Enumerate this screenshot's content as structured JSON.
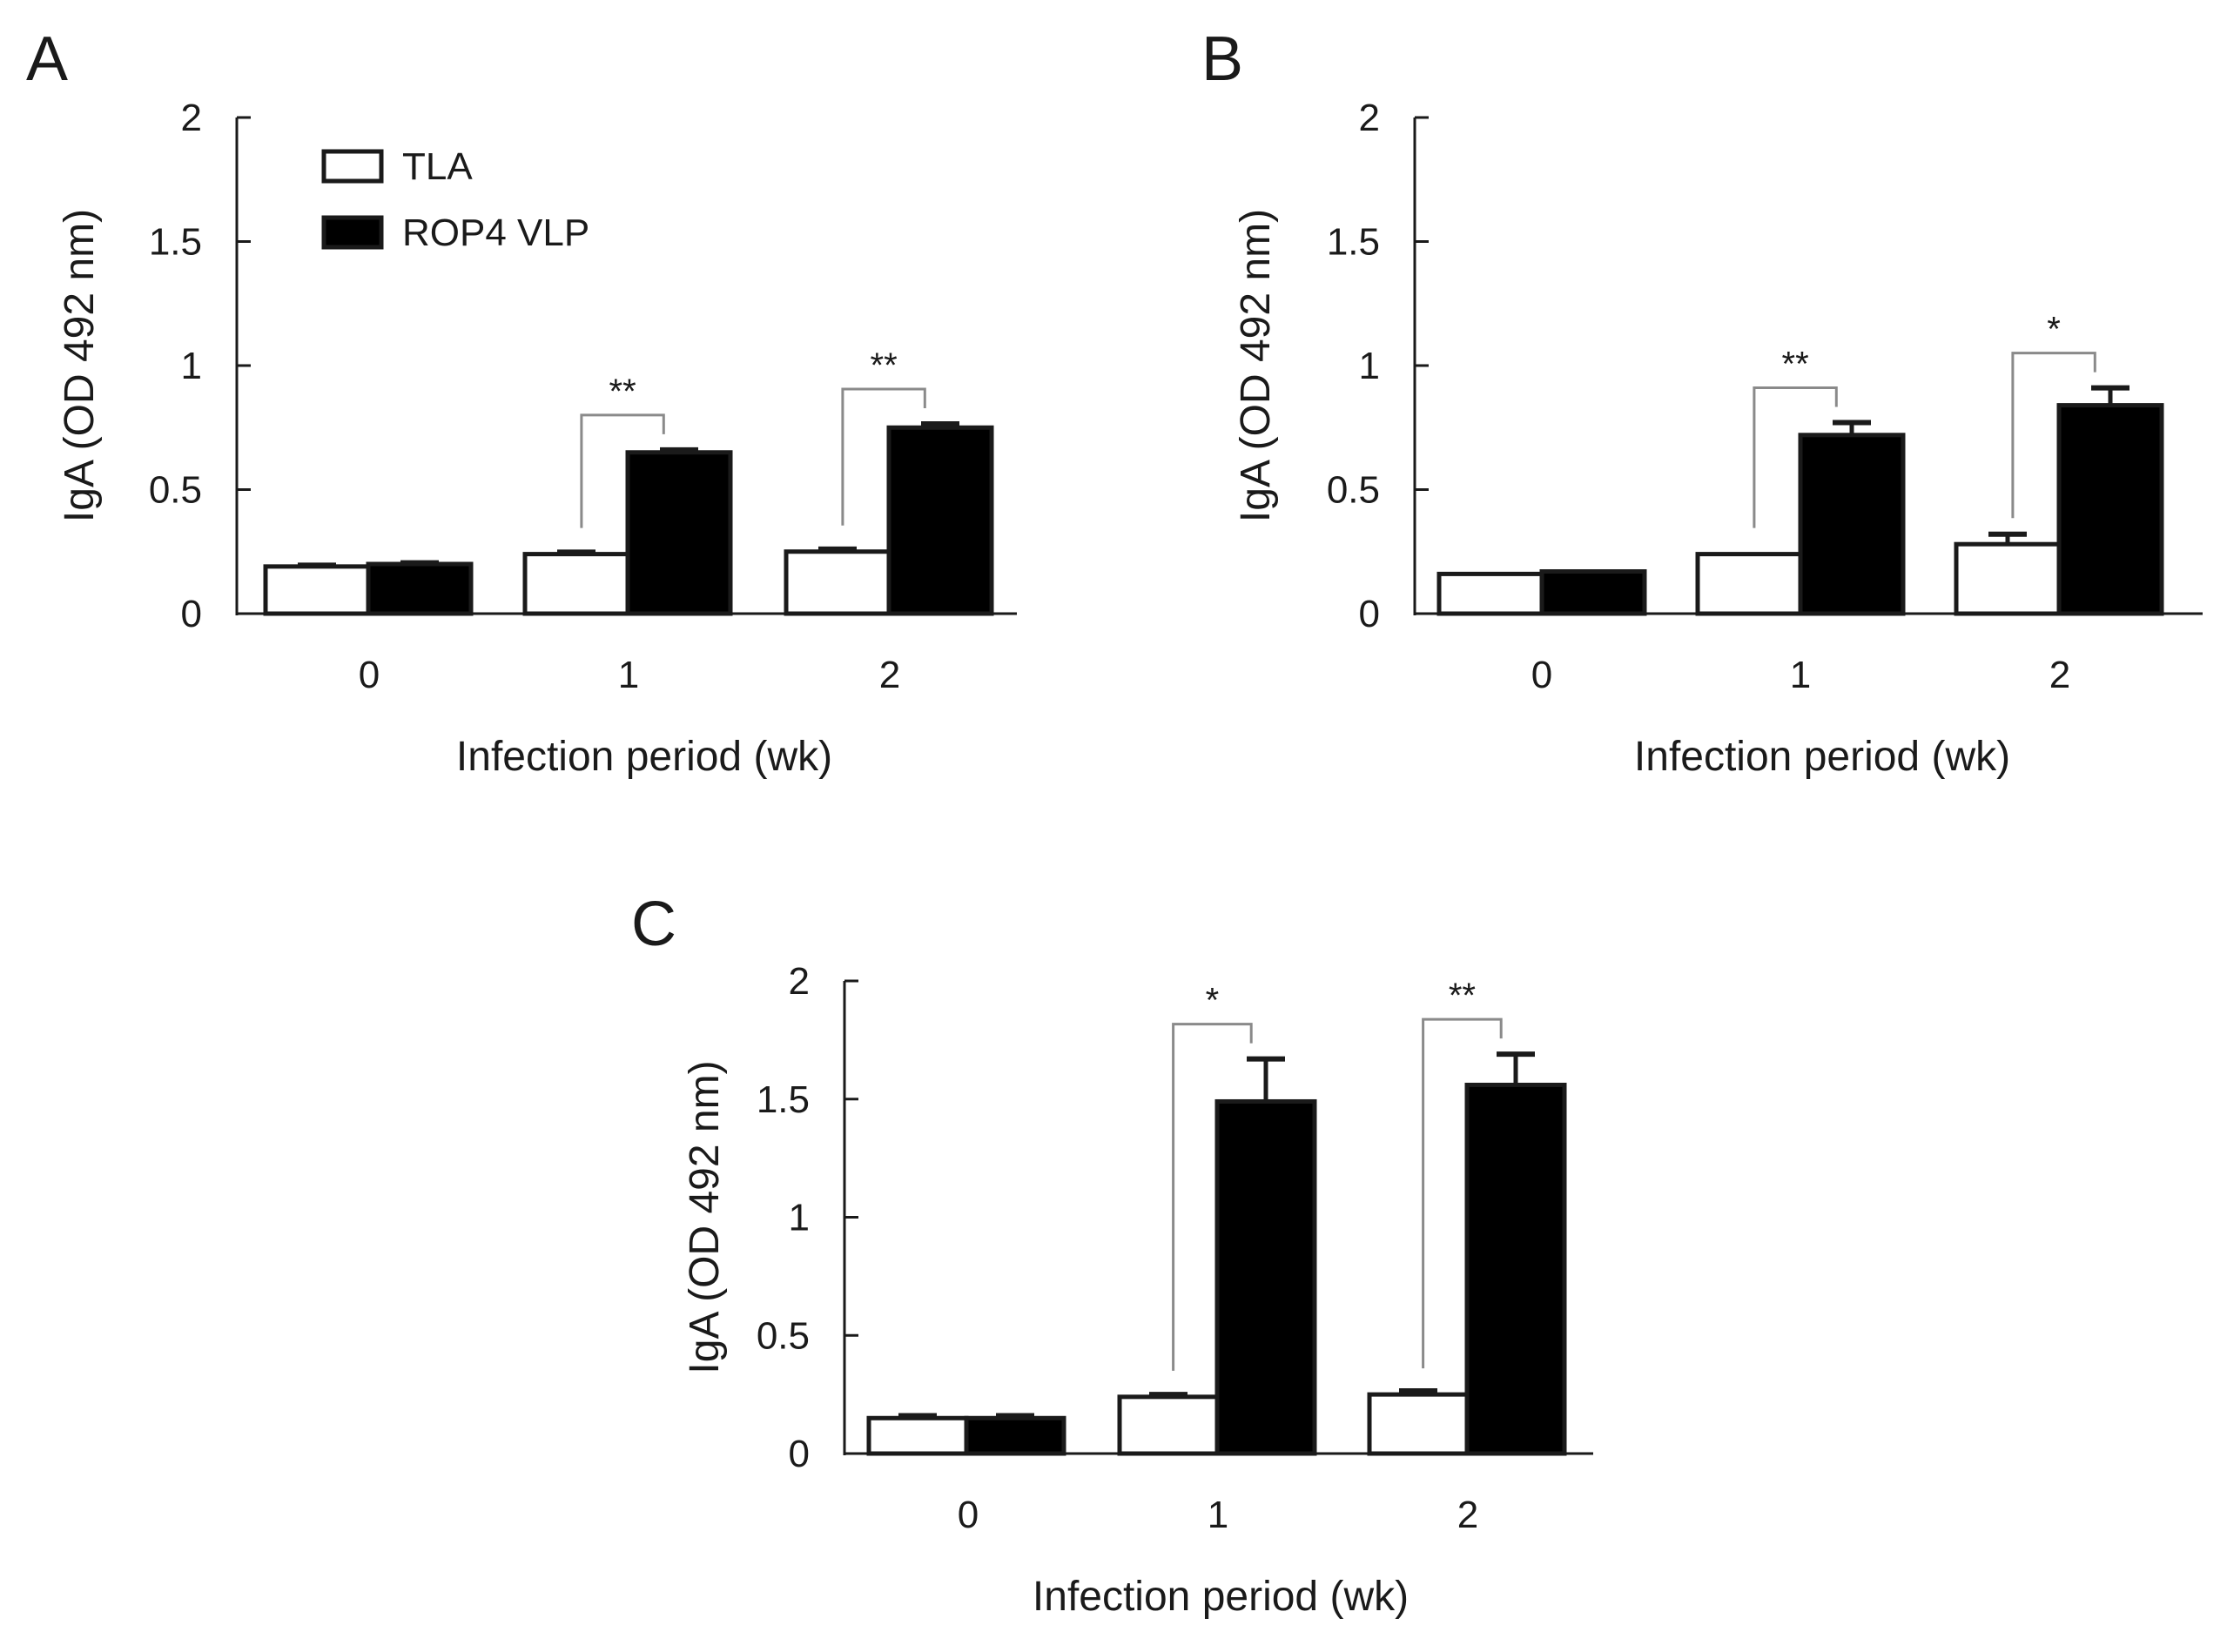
{
  "colors": {
    "tla_fill": "#ffffff",
    "rop4_fill": "#000000",
    "stroke": "#1a1a1a",
    "bracket": "#8a8a8a"
  },
  "legend": [
    {
      "name": "TLA",
      "color": "#ffffff"
    },
    {
      "name": "ROP4 VLP",
      "color": "#000000"
    }
  ],
  "chart_data": [
    {
      "panel": "A",
      "type": "bar",
      "categories": [
        "0",
        "1",
        "2"
      ],
      "series": [
        {
          "name": "TLA",
          "values": [
            0.19,
            0.24,
            0.25
          ],
          "errors": [
            0.005,
            0.008,
            0.01
          ]
        },
        {
          "name": "ROP4 VLP",
          "values": [
            0.2,
            0.65,
            0.75
          ],
          "errors": [
            0.005,
            0.01,
            0.015
          ]
        }
      ],
      "significance": [
        {
          "category": "1",
          "label": "**"
        },
        {
          "category": "2",
          "label": "**"
        }
      ],
      "xlabel": "Infection period (wk)",
      "ylabel": "IgA (OD 492 nm)",
      "ylim": [
        0,
        2
      ],
      "yticks": [
        "0",
        "0.5",
        "1",
        "1.5",
        "2"
      ],
      "legend_position": "top-left"
    },
    {
      "panel": "B",
      "type": "bar",
      "categories": [
        "0",
        "1",
        "2"
      ],
      "series": [
        {
          "name": "TLA",
          "values": [
            0.16,
            0.24,
            0.28
          ],
          "errors": [
            0.0,
            0.0,
            0.04
          ]
        },
        {
          "name": "ROP4 VLP",
          "values": [
            0.17,
            0.72,
            0.84
          ],
          "errors": [
            0.0,
            0.05,
            0.07
          ]
        }
      ],
      "significance": [
        {
          "category": "1",
          "label": "**"
        },
        {
          "category": "2",
          "label": "*"
        }
      ],
      "xlabel": "Infection period (wk)",
      "ylabel": "IgA (OD 492 nm)",
      "ylim": [
        0,
        2
      ],
      "yticks": [
        "0",
        "0.5",
        "1",
        "1.5",
        "2"
      ]
    },
    {
      "panel": "C",
      "type": "bar",
      "categories": [
        "0",
        "1",
        "2"
      ],
      "series": [
        {
          "name": "TLA",
          "values": [
            0.15,
            0.24,
            0.25
          ],
          "errors": [
            0.01,
            0.01,
            0.015
          ]
        },
        {
          "name": "ROP4 VLP",
          "values": [
            0.15,
            1.49,
            1.56
          ],
          "errors": [
            0.01,
            0.18,
            0.13
          ]
        }
      ],
      "significance": [
        {
          "category": "1",
          "label": "*"
        },
        {
          "category": "2",
          "label": "**"
        }
      ],
      "xlabel": "Infection period (wk)",
      "ylabel": "IgA (OD 492 nm)",
      "ylim": [
        0,
        2
      ],
      "yticks": [
        "0",
        "0.5",
        "1",
        "1.5",
        "2"
      ]
    }
  ]
}
